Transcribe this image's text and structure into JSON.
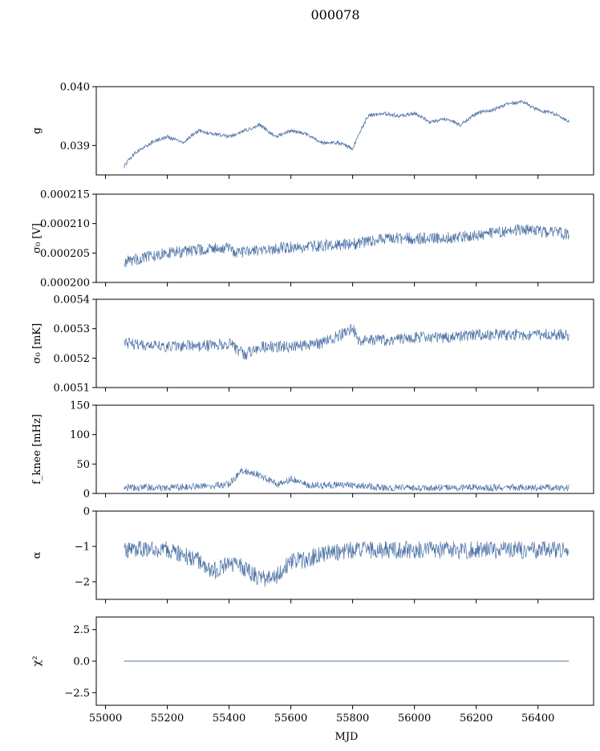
{
  "figure_title": "000078",
  "series_color": "#4c72a6",
  "chart_data": [
    {
      "type": "line",
      "ylabel": "g",
      "ylim": [
        0.0385,
        0.04
      ],
      "yticks": [
        0.039,
        0.04
      ],
      "ytick_labels": [
        "0.039",
        "0.040"
      ],
      "x": [
        55060,
        55100,
        55150,
        55200,
        55250,
        55300,
        55350,
        55400,
        55450,
        55500,
        55550,
        55600,
        55650,
        55700,
        55750,
        55800,
        55830,
        55850,
        55900,
        55950,
        56000,
        56050,
        56100,
        56150,
        56200,
        56250,
        56300,
        56350,
        56400,
        56450,
        56500
      ],
      "values": [
        0.03865,
        0.0389,
        0.03905,
        0.03915,
        0.03905,
        0.03925,
        0.0392,
        0.03915,
        0.03925,
        0.03935,
        0.03915,
        0.03925,
        0.0392,
        0.03905,
        0.03905,
        0.03895,
        0.0393,
        0.0395,
        0.03955,
        0.0395,
        0.03955,
        0.0394,
        0.03945,
        0.03935,
        0.03955,
        0.0396,
        0.0397,
        0.03975,
        0.0396,
        0.03955,
        0.0394
      ],
      "noise": 5e-05
    },
    {
      "type": "line",
      "ylabel": "σ₀ [V]",
      "ylim": [
        0.0002,
        0.000215
      ],
      "yticks": [
        0.0002,
        0.000205,
        0.00021,
        0.000215
      ],
      "ytick_labels": [
        "0.000200",
        "0.000205",
        "0.000210",
        "0.000215"
      ],
      "x": [
        55060,
        55200,
        55400,
        55420,
        55600,
        55800,
        55900,
        56100,
        56200,
        56350,
        56500
      ],
      "values": [
        0.0002035,
        0.000205,
        0.000206,
        0.000205,
        0.000206,
        0.0002065,
        0.0002075,
        0.0002075,
        0.000208,
        0.000209,
        0.0002082
      ],
      "noise": 1e-06
    },
    {
      "type": "line",
      "ylabel": "σ₀ [mK]",
      "ylim": [
        0.0051,
        0.0054
      ],
      "yticks": [
        0.0051,
        0.0052,
        0.0053,
        0.0054
      ],
      "ytick_labels": [
        "0.0051",
        "0.0052",
        "0.0053",
        "0.0054"
      ],
      "x": [
        55060,
        55200,
        55300,
        55400,
        55450,
        55500,
        55600,
        55700,
        55800,
        55820,
        55900,
        56000,
        56100,
        56200,
        56300,
        56400,
        56500
      ],
      "values": [
        0.00525,
        0.00524,
        0.00524,
        0.00525,
        0.00521,
        0.00524,
        0.00524,
        0.00525,
        0.0053,
        0.00526,
        0.00526,
        0.00527,
        0.00527,
        0.00528,
        0.00528,
        0.00528,
        0.00528
      ],
      "noise": 2e-05
    },
    {
      "type": "line",
      "ylabel": "f_knee [mHz]",
      "ylim": [
        0,
        150
      ],
      "yticks": [
        0,
        50,
        100,
        150
      ],
      "ytick_labels": [
        "0",
        "50",
        "100",
        "150"
      ],
      "x": [
        55060,
        55200,
        55300,
        55400,
        55440,
        55480,
        55520,
        55560,
        55600,
        55650,
        55700,
        55800,
        55900,
        56000,
        56100,
        56200,
        56300,
        56400,
        56500
      ],
      "values": [
        10,
        10,
        12,
        15,
        40,
        35,
        25,
        15,
        25,
        15,
        14,
        14,
        10,
        10,
        10,
        10,
        10,
        10,
        10
      ],
      "noise": 6
    },
    {
      "type": "line",
      "ylabel": "α",
      "ylim": [
        -2.5,
        0
      ],
      "yticks": [
        -2,
        -1,
        0
      ],
      "ytick_labels": [
        "−2",
        "−1",
        "0"
      ],
      "x": [
        55060,
        55200,
        55300,
        55350,
        55400,
        55450,
        55500,
        55550,
        55600,
        55650,
        55700,
        55800,
        55900,
        56000,
        56200,
        56400,
        56500
      ],
      "values": [
        -1.1,
        -1.1,
        -1.4,
        -1.7,
        -1.5,
        -1.6,
        -1.9,
        -1.9,
        -1.4,
        -1.4,
        -1.2,
        -1.1,
        -1.1,
        -1.1,
        -1.1,
        -1.1,
        -1.1
      ],
      "noise": 0.25
    },
    {
      "type": "line",
      "ylabel": "χ²",
      "ylim": [
        -3.5,
        3.5
      ],
      "yticks": [
        -2.5,
        0,
        2.5
      ],
      "ytick_labels": [
        "−2.5",
        "0.0",
        "2.5"
      ],
      "x": [
        55060,
        56500
      ],
      "values": [
        0,
        0
      ],
      "noise": 0
    }
  ],
  "x_axis": {
    "label": "MJD",
    "xlim": [
      54970,
      56580
    ],
    "ticks": [
      55000,
      55200,
      55400,
      55600,
      55800,
      56000,
      56200,
      56400
    ],
    "tick_labels": [
      "55000",
      "55200",
      "55400",
      "55600",
      "55800",
      "56000",
      "56200",
      "56400"
    ]
  }
}
